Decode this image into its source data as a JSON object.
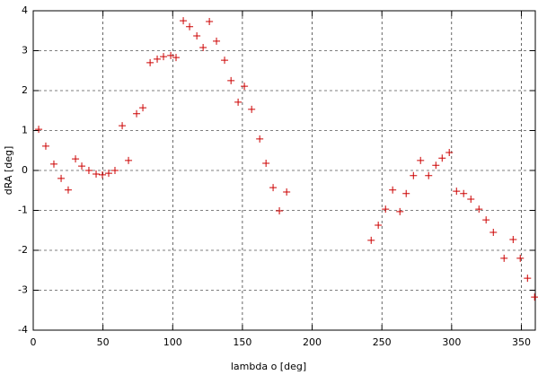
{
  "chart_data": {
    "type": "scatter",
    "xlabel": "lambda  o [deg]",
    "ylabel": "dRA [deg]",
    "xlim": [
      0,
      360
    ],
    "ylim": [
      -4,
      4
    ],
    "xticks": [
      0,
      50,
      100,
      150,
      200,
      250,
      300,
      350
    ],
    "yticks": [
      -4,
      -3,
      -2,
      -1,
      0,
      1,
      2,
      3,
      4
    ],
    "grid": true,
    "color": "#cc0000",
    "x": [
      3.9,
      9.0,
      14.8,
      20.0,
      25.1,
      30.3,
      34.8,
      39.9,
      45.1,
      49.6,
      54.1,
      58.6,
      63.8,
      68.3,
      74.1,
      78.6,
      83.8,
      88.9,
      93.4,
      98.6,
      102.4,
      107.6,
      112.1,
      117.3,
      121.8,
      126.3,
      131.4,
      137.2,
      141.8,
      146.9,
      151.4,
      156.6,
      162.4,
      166.9,
      172.0,
      176.5,
      181.7,
      242.3,
      247.4,
      252.6,
      257.7,
      262.9,
      267.4,
      272.6,
      277.7,
      283.5,
      288.7,
      293.2,
      298.3,
      303.5,
      308.6,
      313.8,
      319.6,
      324.7,
      329.9,
      337.6,
      344.1,
      349.2,
      354.4,
      359.5
    ],
    "values": [
      1.03,
      0.61,
      0.16,
      -0.2,
      -0.49,
      0.29,
      0.11,
      0.0,
      -0.09,
      -0.11,
      -0.07,
      0.0,
      1.12,
      0.25,
      1.42,
      1.57,
      2.7,
      2.79,
      2.85,
      2.88,
      2.83,
      3.75,
      3.6,
      3.37,
      3.08,
      3.73,
      3.24,
      2.76,
      2.25,
      1.71,
      2.11,
      1.53,
      0.79,
      0.18,
      -0.43,
      -1.01,
      -0.54,
      -1.75,
      -1.37,
      -0.97,
      -0.49,
      -1.03,
      -0.58,
      -0.13,
      0.25,
      -0.13,
      0.13,
      0.31,
      0.45,
      -0.52,
      -0.58,
      -0.72,
      -0.97,
      -1.24,
      -1.55,
      -2.2,
      -1.73,
      -2.2,
      -2.7,
      -3.17
    ]
  }
}
